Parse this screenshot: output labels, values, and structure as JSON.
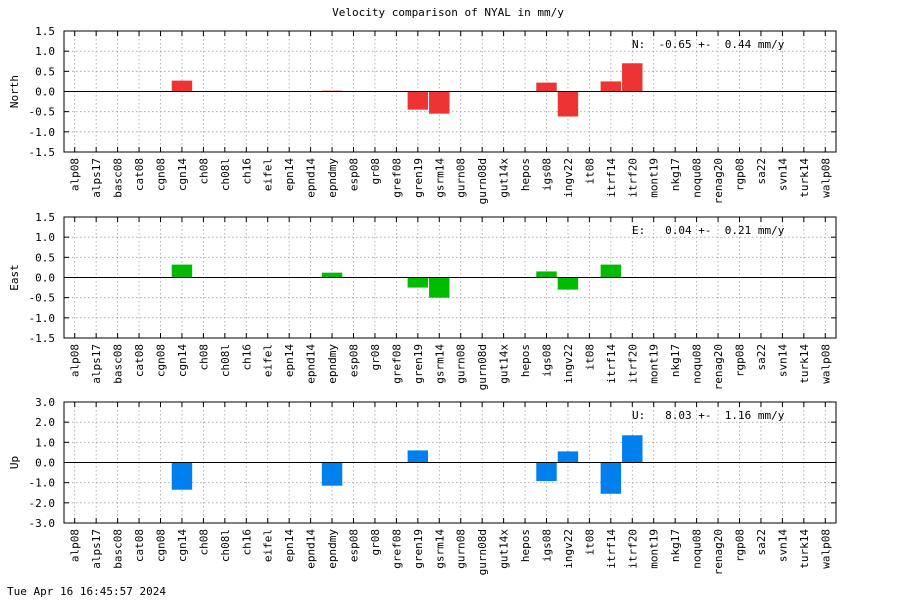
{
  "title": "Velocity comparison of NYAL in mm/y",
  "timestamp": "Tue Apr 16 16:45:57 2024",
  "chart_data": [
    {
      "type": "bar",
      "ylabel": "North",
      "ylim": [
        -1.5,
        1.5
      ],
      "yticks": [
        "-1.5",
        "-1.0",
        "-0.5",
        "0.0",
        "0.5",
        "1.0",
        "1.5"
      ],
      "annotation": "N:  -0.65 +-  0.44 mm/y",
      "color": "#ee3333",
      "grid": true,
      "categories": [
        "alp08",
        "alps17",
        "basc08",
        "cat08",
        "cgn08",
        "cgn14",
        "ch08",
        "ch08l",
        "ch16",
        "eifel",
        "epn14",
        "epnd14",
        "epndmy",
        "esp08",
        "gr08",
        "gref08",
        "gren19",
        "gsrm14",
        "gurn08",
        "gurn08d",
        "gut14x",
        "hepos",
        "igs08",
        "ingv22",
        "it08",
        "itrf14",
        "itrf20",
        "mont19",
        "nkg17",
        "noqu08",
        "renag20",
        "rgp08",
        "sa22",
        "svn14",
        "turk14",
        "walp08"
      ],
      "values": [
        0,
        0,
        0,
        0,
        0,
        0.27,
        0,
        0,
        0,
        0,
        0,
        0,
        0.02,
        0,
        0,
        0,
        -0.45,
        -0.55,
        0,
        0,
        0,
        0,
        0.22,
        -0.62,
        0,
        0.25,
        0.7,
        0,
        0,
        0,
        0,
        0,
        0,
        0,
        0,
        0
      ]
    },
    {
      "type": "bar",
      "ylabel": "East",
      "ylim": [
        -1.5,
        1.5
      ],
      "yticks": [
        "-1.5",
        "-1.0",
        "-0.5",
        "0.0",
        "0.5",
        "1.0",
        "1.5"
      ],
      "annotation": "E:   0.04 +-  0.21 mm/y",
      "color": "#00bb00",
      "grid": true,
      "categories": [
        "alp08",
        "alps17",
        "basc08",
        "cat08",
        "cgn08",
        "cgn14",
        "ch08",
        "ch08l",
        "ch16",
        "eifel",
        "epn14",
        "epnd14",
        "epndmy",
        "esp08",
        "gr08",
        "gref08",
        "gren19",
        "gsrm14",
        "gurn08",
        "gurn08d",
        "gut14x",
        "hepos",
        "igs08",
        "ingv22",
        "it08",
        "itrf14",
        "itrf20",
        "mont19",
        "nkg17",
        "noqu08",
        "renag20",
        "rgp08",
        "sa22",
        "svn14",
        "turk14",
        "walp08"
      ],
      "values": [
        0,
        0,
        0,
        0,
        0,
        0.32,
        0,
        0,
        0,
        0,
        0,
        0,
        0.12,
        0,
        0,
        0,
        -0.25,
        -0.5,
        0,
        0,
        0,
        0,
        0.15,
        -0.3,
        0,
        0.32,
        0,
        0,
        0,
        0,
        0,
        0,
        0,
        0,
        0,
        0
      ]
    },
    {
      "type": "bar",
      "ylabel": "Up",
      "ylim": [
        -3.0,
        3.0
      ],
      "yticks": [
        "-3.0",
        "-2.0",
        "-1.0",
        "0.0",
        "1.0",
        "2.0",
        "3.0"
      ],
      "annotation": "U:   8.03 +-  1.16 mm/y",
      "color": "#0080ee",
      "grid": true,
      "categories": [
        "alp08",
        "alps17",
        "basc08",
        "cat08",
        "cgn08",
        "cgn14",
        "ch08",
        "ch08l",
        "ch16",
        "eifel",
        "epn14",
        "epnd14",
        "epndmy",
        "esp08",
        "gr08",
        "gref08",
        "gren19",
        "gsrm14",
        "gurn08",
        "gurn08d",
        "gut14x",
        "hepos",
        "igs08",
        "ingv22",
        "it08",
        "itrf14",
        "itrf20",
        "mont19",
        "nkg17",
        "noqu08",
        "renag20",
        "rgp08",
        "sa22",
        "svn14",
        "turk14",
        "walp08"
      ],
      "values": [
        0,
        0,
        0,
        0,
        0,
        -1.35,
        0,
        0,
        0,
        0,
        0,
        0,
        -1.15,
        0,
        0,
        0,
        0.6,
        0,
        0,
        0,
        0,
        0,
        -0.92,
        0.55,
        0,
        -1.55,
        1.35,
        0,
        0,
        0,
        0,
        0,
        0,
        0,
        0,
        0
      ]
    }
  ]
}
